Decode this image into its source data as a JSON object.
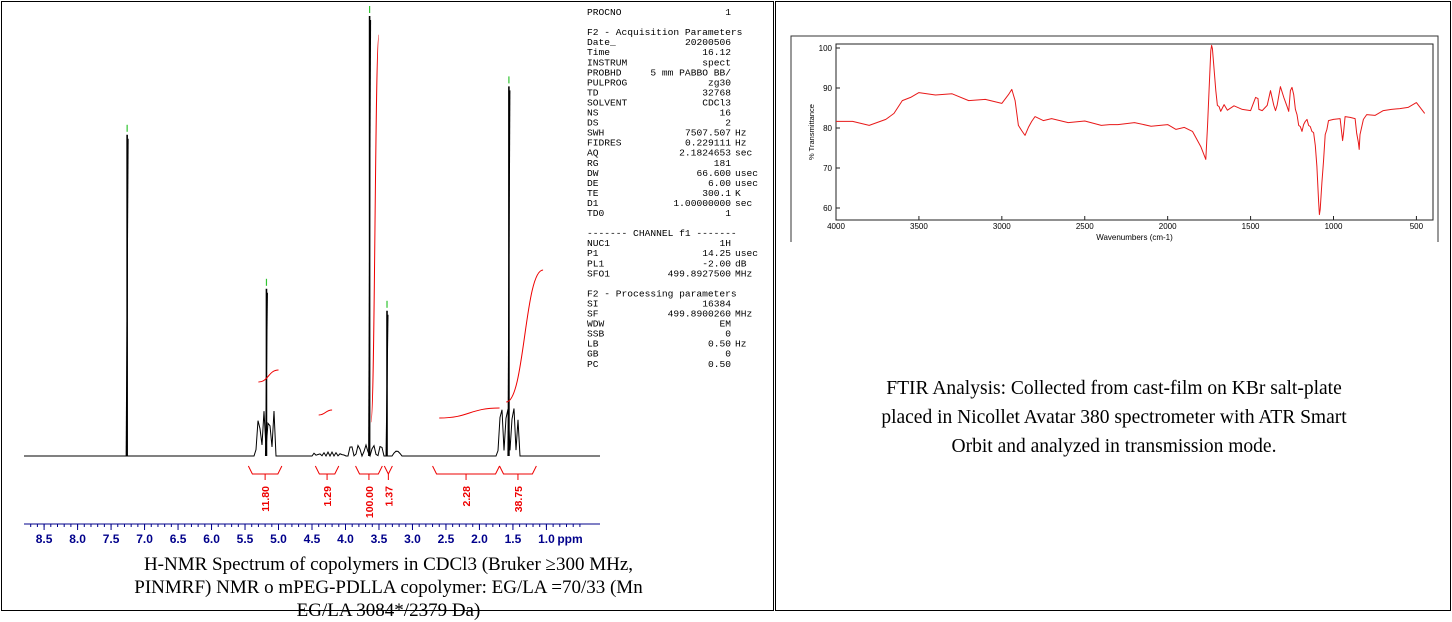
{
  "nmr": {
    "params": [
      [
        "PROCNO",
        "1",
        ""
      ],
      [
        "",
        "",
        ""
      ],
      [
        "F2 - Acquisition Parameters",
        "",
        ""
      ],
      [
        "Date_",
        "20200506",
        ""
      ],
      [
        "Time",
        "16.12",
        ""
      ],
      [
        "INSTRUM",
        "spect",
        ""
      ],
      [
        "PROBHD",
        "5 mm PABBO BB/",
        ""
      ],
      [
        "PULPROG",
        "zg30",
        ""
      ],
      [
        "TD",
        "32768",
        ""
      ],
      [
        "SOLVENT",
        "CDCl3",
        ""
      ],
      [
        "NS",
        "16",
        ""
      ],
      [
        "DS",
        "2",
        ""
      ],
      [
        "SWH",
        "7507.507",
        "Hz"
      ],
      [
        "FIDRES",
        "0.229111",
        "Hz"
      ],
      [
        "AQ",
        "2.1824653",
        "sec"
      ],
      [
        "RG",
        "181",
        ""
      ],
      [
        "DW",
        "66.600",
        "usec"
      ],
      [
        "DE",
        "6.00",
        "usec"
      ],
      [
        "TE",
        "300.1",
        "K"
      ],
      [
        "D1",
        "1.00000000",
        "sec"
      ],
      [
        "TD0",
        "1",
        ""
      ],
      [
        "",
        "",
        ""
      ],
      [
        "======= CHANNEL f1 =======",
        "",
        ""
      ],
      [
        "NUC1",
        "1H",
        ""
      ],
      [
        "P1",
        "14.25",
        "usec"
      ],
      [
        "PL1",
        "-2.00",
        "dB"
      ],
      [
        "SFO1",
        "499.8927500",
        "MHz"
      ],
      [
        "",
        "",
        ""
      ],
      [
        "F2 - Processing parameters",
        "",
        ""
      ],
      [
        "SI",
        "16384",
        ""
      ],
      [
        "SF",
        "499.8900260",
        "MHz"
      ],
      [
        "WDW",
        "EM",
        ""
      ],
      [
        "SSB",
        "0",
        ""
      ],
      [
        "LB",
        "0.50",
        "Hz"
      ],
      [
        "GB",
        "0",
        ""
      ],
      [
        "PC",
        "0.50",
        ""
      ]
    ],
    "caption_lines": [
      "H-NMR Spectrum of copolymers in CDCl3 (Bruker ≥300 MHz,",
      "PINMRF) NMR o mPEG-PDLLA copolymer: EG/LA =70/33 (Mn",
      "EG/LA 3084*/2379 Da)"
    ]
  },
  "ftir": {
    "caption_lines": [
      "FTIR Analysis: Collected from cast-film on KBr salt-plate",
      "placed in Nicollet Avatar 380 spectrometer with ATR Smart",
      "Orbit and analyzed in transmission mode."
    ]
  },
  "chart_data": [
    {
      "type": "line",
      "xlabel": "ppm",
      "xlim": [
        8.8,
        0.2
      ],
      "x_reversed": true,
      "xticks": [
        8.5,
        8.0,
        7.5,
        7.0,
        6.5,
        6.0,
        5.5,
        5.0,
        4.5,
        4.0,
        3.5,
        3.0,
        2.5,
        2.0,
        1.5,
        1.0
      ],
      "peaks": [
        {
          "ppm": 7.26,
          "height": 0.73
        },
        {
          "ppm": 5.18,
          "height": 0.38
        },
        {
          "ppm": 3.64,
          "height": 1.0
        },
        {
          "ppm": 3.38,
          "height": 0.33
        },
        {
          "ppm": 1.56,
          "height": 0.84
        }
      ],
      "integrals": [
        {
          "from": 5.45,
          "to": 4.95,
          "value": "11.80"
        },
        {
          "from": 4.45,
          "to": 4.1,
          "value": "1.29"
        },
        {
          "from": 3.85,
          "to": 3.45,
          "value": "100.00"
        },
        {
          "from": 3.42,
          "to": 3.3,
          "value": "1.37"
        },
        {
          "from": 2.7,
          "to": 1.7,
          "value": "2.28"
        },
        {
          "from": 1.7,
          "to": 1.15,
          "value": "38.75"
        }
      ]
    },
    {
      "type": "line",
      "xlabel": "Wavenumbers (cm-1)",
      "ylabel": "% Transmittance",
      "xlim": [
        4000,
        400
      ],
      "ylim": [
        57,
        101
      ],
      "xticks": [
        4000,
        3500,
        3000,
        2500,
        2000,
        1500,
        1000,
        500
      ],
      "yticks": [
        60,
        70,
        80,
        90,
        100
      ],
      "series": [
        {
          "x": [
            4000,
            3900,
            3800,
            3700,
            3650,
            3600,
            3550,
            3500,
            3400,
            3300,
            3200,
            3100,
            3000,
            2960,
            2940,
            2920,
            2900,
            2880,
            2860,
            2840,
            2820,
            2800,
            2750,
            2700,
            2600,
            2500,
            2400,
            2350,
            2300,
            2200,
            2100,
            2000,
            1950,
            1900,
            1850,
            1800,
            1770,
            1760,
            1750,
            1740,
            1735,
            1730,
            1720,
            1710,
            1700,
            1690,
            1680,
            1660,
            1640,
            1600,
            1550,
            1500,
            1470,
            1455,
            1450,
            1430,
            1400,
            1380,
            1360,
            1350,
            1340,
            1320,
            1300,
            1280,
            1270,
            1260,
            1250,
            1240,
            1230,
            1220,
            1210,
            1200,
            1190,
            1180,
            1170,
            1160,
            1150,
            1140,
            1130,
            1120,
            1110,
            1100,
            1090,
            1085,
            1080,
            1070,
            1060,
            1050,
            1040,
            1030,
            1000,
            960,
            950,
            945,
            940,
            930,
            900,
            870,
            860,
            850,
            845,
            840,
            820,
            800,
            750,
            700,
            650,
            600,
            550,
            500,
            450
          ],
          "y": [
            82,
            81.3,
            81,
            81.8,
            84,
            86.5,
            88,
            88.5,
            88.6,
            88.2,
            87.2,
            86.8,
            86.5,
            88,
            90,
            86.5,
            81,
            79,
            78.5,
            79.8,
            82,
            82.5,
            82.2,
            82,
            81.7,
            81.4,
            81,
            80.5,
            81.2,
            81,
            80.8,
            80.5,
            80,
            79.8,
            79.5,
            75,
            72.5,
            80,
            90,
            99,
            101,
            99.5,
            95,
            89,
            86,
            85,
            84.5,
            85.5,
            84.8,
            85.2,
            85,
            84,
            88,
            87,
            85,
            84,
            86,
            89,
            86,
            84,
            86,
            90,
            88,
            85,
            84.5,
            89,
            90.5,
            88,
            85,
            83,
            81,
            80,
            79.5,
            80.5,
            82,
            81.8,
            81,
            80,
            79.5,
            78.5,
            76,
            70,
            62,
            58,
            60,
            66,
            72,
            78,
            80,
            81.5,
            82.5,
            82,
            79,
            76.5,
            79,
            82.5,
            83,
            82,
            79,
            76,
            75,
            78,
            82.5,
            83,
            83.5,
            84,
            85,
            84.5,
            85.5,
            86,
            84
          ]
        }
      ]
    }
  ]
}
